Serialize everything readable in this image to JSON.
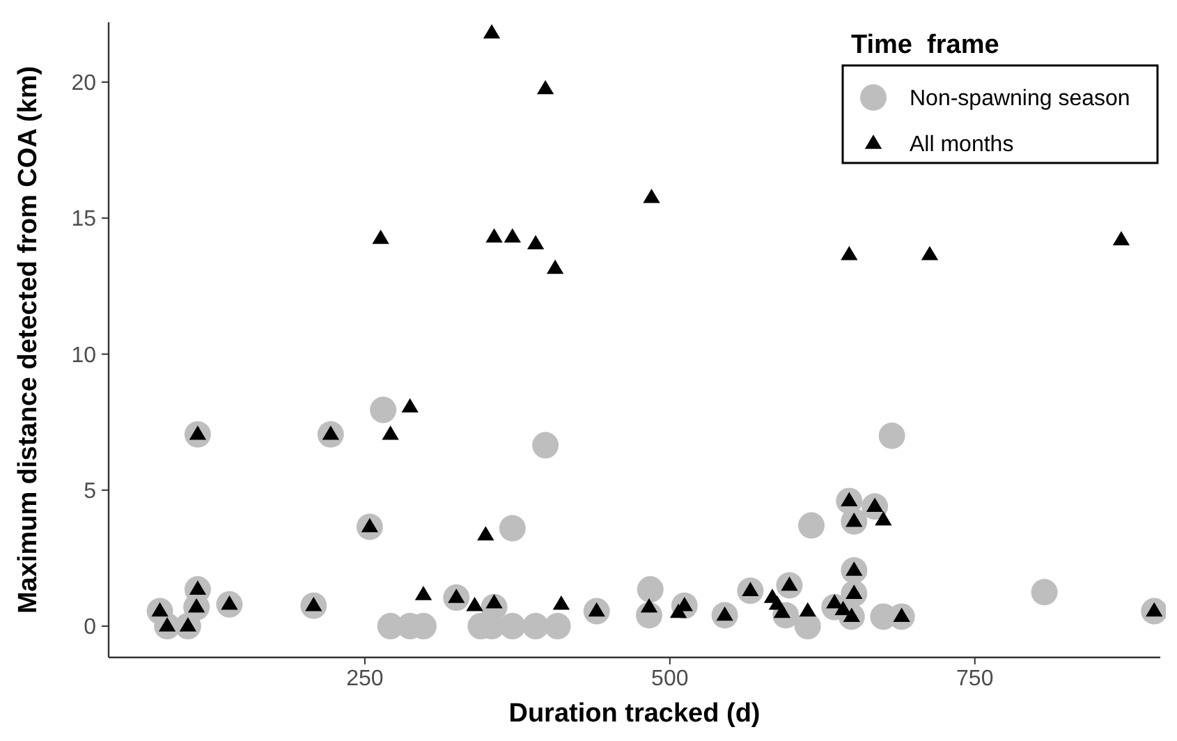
{
  "chart_data": {
    "type": "scatter",
    "xlabel": "Duration tracked (d)",
    "ylabel": "Maximum distance detected from COA (km)",
    "legend_title": "Time  frame",
    "legend": "top right",
    "grid": false,
    "xlim": [
      40,
      902
    ],
    "xticks": [
      250,
      500,
      750
    ],
    "ylim": [
      -1.15,
      22.2
    ],
    "yticks": [
      0,
      5,
      10,
      15,
      20
    ],
    "series": [
      {
        "name": "Non-spawning season",
        "color": "#bebebe",
        "marker": "circle",
        "x": [
          82,
          88,
          105,
          113,
          113,
          112,
          139,
          208,
          222,
          254,
          265,
          271,
          287,
          298,
          325,
          345,
          354,
          356,
          371,
          390,
          371,
          398,
          408,
          440,
          484,
          483,
          512,
          545,
          566,
          595,
          598,
          613,
          616,
          635,
          647,
          651,
          651,
          651,
          649,
          668,
          675,
          682,
          690,
          807,
          897
        ],
        "values": [
          0.55,
          0,
          0,
          7.05,
          1.35,
          0.7,
          0.8,
          0.75,
          7.05,
          3.65,
          7.95,
          0,
          0,
          0,
          1.05,
          0,
          0,
          0.7,
          0,
          0,
          3.6,
          6.65,
          0,
          0.55,
          1.35,
          0.4,
          0.75,
          0.4,
          1.3,
          0.4,
          1.5,
          0,
          3.7,
          0.7,
          4.6,
          3.85,
          2.05,
          1.2,
          0.35,
          4.4,
          0.35,
          7.0,
          0.35,
          1.25,
          0.55
        ]
      },
      {
        "name": "All months",
        "color": "#000000",
        "marker": "triangle",
        "x": [
          82,
          88,
          105,
          113,
          113,
          112,
          139,
          208,
          222,
          254,
          263,
          271,
          287,
          298,
          325,
          340,
          349,
          354,
          356,
          356,
          371,
          390,
          398,
          406,
          411,
          440,
          483,
          485,
          507,
          512,
          545,
          566,
          584,
          588,
          592,
          598,
          613,
          635,
          642,
          647,
          647,
          651,
          651,
          651,
          649,
          668,
          675,
          690,
          713,
          870,
          897
        ],
        "values": [
          0.55,
          0,
          0,
          7.05,
          1.35,
          0.7,
          0.8,
          0.75,
          7.05,
          3.65,
          14.25,
          7.05,
          8.05,
          1.15,
          1.05,
          0.75,
          3.35,
          21.8,
          14.3,
          0.85,
          14.3,
          14.05,
          19.75,
          13.15,
          0.8,
          0.55,
          0.7,
          15.75,
          0.5,
          0.75,
          0.4,
          1.3,
          1.05,
          0.8,
          0.5,
          1.5,
          0.55,
          0.85,
          0.6,
          13.65,
          4.6,
          3.85,
          2.05,
          1.2,
          0.35,
          4.4,
          3.9,
          0.35,
          13.65,
          14.2,
          0.55
        ]
      }
    ]
  }
}
